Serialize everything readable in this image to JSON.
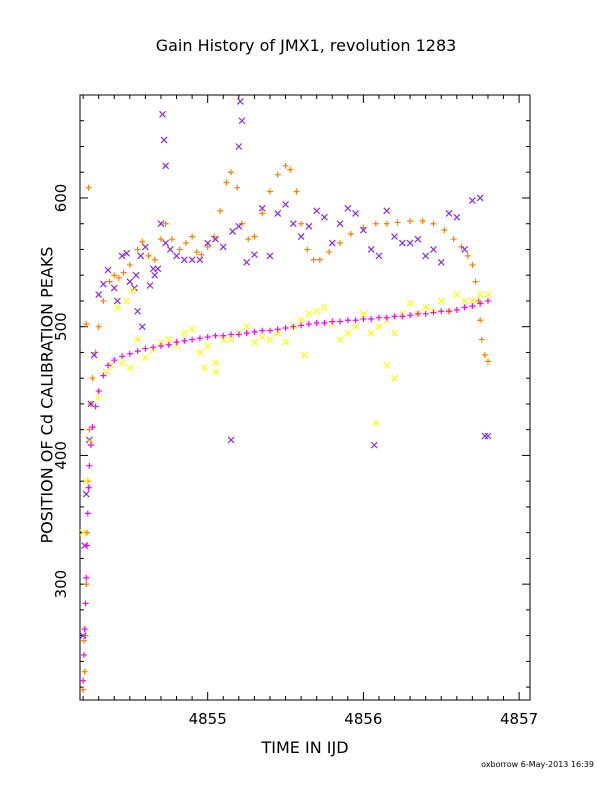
{
  "chart_data": {
    "type": "scatter",
    "title": "Gain History of JMX1, revolution 1283",
    "xlabel": "TIME IN IJD",
    "ylabel": "POSITION OF Cd CALIBRATION PEAKS",
    "xlim": [
      4854.18,
      4857.07
    ],
    "ylim": [
      210,
      680
    ],
    "x_ticks": [
      4855,
      4856,
      4857
    ],
    "y_ticks": [
      300,
      400,
      500,
      600
    ],
    "grid": false,
    "legend": "none",
    "series": [
      {
        "color": "#ff8000",
        "marker": "plus",
        "points": [
          [
            4854.2,
            218
          ],
          [
            4854.21,
            232
          ],
          [
            4854.215,
            260
          ],
          [
            4854.22,
            300
          ],
          [
            4854.225,
            340
          ],
          [
            4854.23,
            380
          ],
          [
            4854.24,
            420
          ],
          [
            4854.25,
            440
          ],
          [
            4854.26,
            460
          ],
          [
            4854.28,
            480
          ],
          [
            4854.3,
            500
          ],
          [
            4854.33,
            520
          ],
          [
            4854.37,
            535
          ],
          [
            4854.4,
            540
          ],
          [
            4854.43,
            538
          ],
          [
            4854.46,
            542
          ],
          [
            4854.5,
            548
          ],
          [
            4854.55,
            560
          ],
          [
            4854.58,
            566
          ],
          [
            4854.62,
            555
          ],
          [
            4854.66,
            552
          ],
          [
            4854.7,
            568
          ],
          [
            4854.73,
            580
          ],
          [
            4854.77,
            568
          ],
          [
            4854.82,
            560
          ],
          [
            4854.86,
            565
          ],
          [
            4854.9,
            570
          ],
          [
            4854.93,
            558
          ],
          [
            4854.96,
            556
          ],
          [
            4855.0,
            562
          ],
          [
            4855.04,
            570
          ],
          [
            4855.08,
            590
          ],
          [
            4855.12,
            612
          ],
          [
            4855.15,
            620
          ],
          [
            4855.19,
            608
          ],
          [
            4855.22,
            580
          ],
          [
            4855.26,
            568
          ],
          [
            4855.3,
            570
          ],
          [
            4855.35,
            588
          ],
          [
            4855.4,
            605
          ],
          [
            4855.45,
            618
          ],
          [
            4855.5,
            625
          ],
          [
            4855.53,
            622
          ],
          [
            4855.57,
            605
          ],
          [
            4855.6,
            580
          ],
          [
            4855.64,
            560
          ],
          [
            4855.68,
            552
          ],
          [
            4855.72,
            552
          ],
          [
            4855.78,
            558
          ],
          [
            4855.85,
            565
          ],
          [
            4855.92,
            572
          ],
          [
            4856.0,
            577
          ],
          [
            4856.08,
            580
          ],
          [
            4856.15,
            580
          ],
          [
            4856.22,
            581
          ],
          [
            4856.3,
            582
          ],
          [
            4856.38,
            582
          ],
          [
            4856.45,
            580
          ],
          [
            4856.52,
            575
          ],
          [
            4856.58,
            568
          ],
          [
            4856.63,
            562
          ],
          [
            4856.67,
            555
          ],
          [
            4856.7,
            548
          ],
          [
            4856.72,
            535
          ],
          [
            4856.74,
            520
          ],
          [
            4856.75,
            505
          ],
          [
            4856.76,
            490
          ],
          [
            4856.78,
            478
          ],
          [
            4856.8,
            473
          ],
          [
            4854.22,
            502
          ],
          [
            4854.235,
            608
          ],
          [
            4854.205,
            256
          ]
        ]
      },
      {
        "color": "#8a2be2",
        "marker": "cross",
        "points": [
          [
            4854.2,
            260
          ],
          [
            4854.21,
            330
          ],
          [
            4854.22,
            370
          ],
          [
            4854.24,
            412
          ],
          [
            4854.25,
            440
          ],
          [
            4854.27,
            478
          ],
          [
            4854.3,
            525
          ],
          [
            4854.33,
            533
          ],
          [
            4854.36,
            544
          ],
          [
            4854.4,
            530
          ],
          [
            4854.42,
            520
          ],
          [
            4854.45,
            555
          ],
          [
            4854.48,
            557
          ],
          [
            4854.5,
            535
          ],
          [
            4854.54,
            540
          ],
          [
            4854.57,
            555
          ],
          [
            4854.6,
            562
          ],
          [
            4854.63,
            532
          ],
          [
            4854.66,
            540
          ],
          [
            4854.7,
            580
          ],
          [
            4854.73,
            565
          ],
          [
            4854.76,
            560
          ],
          [
            4854.8,
            555
          ],
          [
            4854.85,
            552
          ],
          [
            4854.9,
            552
          ],
          [
            4854.95,
            552
          ],
          [
            4855.0,
            565
          ],
          [
            4855.05,
            568
          ],
          [
            4855.1,
            562
          ],
          [
            4855.16,
            574
          ],
          [
            4855.2,
            578
          ],
          [
            4855.25,
            550
          ],
          [
            4855.3,
            556
          ],
          [
            4855.35,
            592
          ],
          [
            4855.4,
            555
          ],
          [
            4855.45,
            588
          ],
          [
            4855.5,
            595
          ],
          [
            4855.55,
            580
          ],
          [
            4855.6,
            570
          ],
          [
            4855.65,
            578
          ],
          [
            4855.7,
            590
          ],
          [
            4855.75,
            585
          ],
          [
            4855.8,
            565
          ],
          [
            4855.85,
            580
          ],
          [
            4855.9,
            592
          ],
          [
            4855.95,
            588
          ],
          [
            4856.0,
            575
          ],
          [
            4856.05,
            560
          ],
          [
            4856.1,
            555
          ],
          [
            4856.15,
            590
          ],
          [
            4856.2,
            570
          ],
          [
            4856.25,
            565
          ],
          [
            4856.3,
            565
          ],
          [
            4856.35,
            568
          ],
          [
            4856.4,
            555
          ],
          [
            4856.45,
            560
          ],
          [
            4856.5,
            550
          ],
          [
            4856.55,
            588
          ],
          [
            4856.6,
            585
          ],
          [
            4856.65,
            560
          ],
          [
            4856.7,
            598
          ],
          [
            4856.75,
            600
          ],
          [
            4856.78,
            415
          ],
          [
            4856.8,
            415
          ],
          [
            4855.15,
            412
          ],
          [
            4856.07,
            408
          ],
          [
            4854.71,
            665
          ],
          [
            4854.72,
            645
          ],
          [
            4854.73,
            625
          ],
          [
            4855.21,
            675
          ],
          [
            4855.22,
            660
          ],
          [
            4855.2,
            640
          ],
          [
            4854.53,
            530
          ],
          [
            4854.55,
            512
          ],
          [
            4854.58,
            500
          ],
          [
            4854.65,
            545
          ],
          [
            4854.68,
            545
          ]
        ]
      },
      {
        "color": "#ffff00",
        "marker": "cross",
        "points": [
          [
            4854.2,
            340
          ],
          [
            4854.22,
            380
          ],
          [
            4854.25,
            410
          ],
          [
            4854.3,
            445
          ],
          [
            4854.35,
            465
          ],
          [
            4854.38,
            470
          ],
          [
            4854.45,
            472
          ],
          [
            4854.5,
            468
          ],
          [
            4854.55,
            490
          ],
          [
            4854.6,
            476
          ],
          [
            4854.65,
            482
          ],
          [
            4854.7,
            488
          ],
          [
            4854.75,
            490
          ],
          [
            4854.8,
            485
          ],
          [
            4854.85,
            495
          ],
          [
            4854.9,
            498
          ],
          [
            4854.95,
            480
          ],
          [
            4855.0,
            485
          ],
          [
            4855.05,
            472
          ],
          [
            4855.1,
            490
          ],
          [
            4855.15,
            490
          ],
          [
            4855.2,
            495
          ],
          [
            4855.25,
            500
          ],
          [
            4855.3,
            488
          ],
          [
            4855.35,
            492
          ],
          [
            4855.4,
            490
          ],
          [
            4855.45,
            495
          ],
          [
            4855.5,
            488
          ],
          [
            4855.55,
            500
          ],
          [
            4855.6,
            505
          ],
          [
            4855.65,
            510
          ],
          [
            4855.7,
            512
          ],
          [
            4855.75,
            515
          ],
          [
            4855.8,
            502
          ],
          [
            4855.85,
            490
          ],
          [
            4855.9,
            495
          ],
          [
            4855.95,
            500
          ],
          [
            4856.0,
            510
          ],
          [
            4856.05,
            495
          ],
          [
            4856.1,
            500
          ],
          [
            4856.15,
            505
          ],
          [
            4856.2,
            495
          ],
          [
            4856.25,
            510
          ],
          [
            4856.3,
            518
          ],
          [
            4856.35,
            510
          ],
          [
            4856.4,
            515
          ],
          [
            4856.45,
            512
          ],
          [
            4856.5,
            520
          ],
          [
            4856.55,
            512
          ],
          [
            4856.6,
            525
          ],
          [
            4856.65,
            520
          ],
          [
            4856.7,
            520
          ],
          [
            4856.75,
            525
          ],
          [
            4856.8,
            525
          ],
          [
            4854.52,
            528
          ],
          [
            4854.48,
            520
          ],
          [
            4854.42,
            515
          ],
          [
            4855.62,
            478
          ],
          [
            4856.08,
            425
          ],
          [
            4856.15,
            470
          ],
          [
            4856.2,
            460
          ],
          [
            4855.05,
            465
          ],
          [
            4854.98,
            468
          ]
        ]
      },
      {
        "color": "#ff00ff",
        "marker": "plus",
        "points": [
          [
            4854.2,
            225
          ],
          [
            4854.205,
            245
          ],
          [
            4854.21,
            265
          ],
          [
            4854.215,
            285
          ],
          [
            4854.22,
            305
          ],
          [
            4854.225,
            330
          ],
          [
            4854.23,
            355
          ],
          [
            4854.235,
            375
          ],
          [
            4854.24,
            392
          ],
          [
            4854.25,
            408
          ],
          [
            4854.26,
            422
          ],
          [
            4854.28,
            438
          ],
          [
            4854.3,
            450
          ],
          [
            4854.33,
            462
          ],
          [
            4854.36,
            470
          ],
          [
            4854.4,
            474
          ],
          [
            4854.45,
            477
          ],
          [
            4854.5,
            479
          ],
          [
            4854.55,
            481
          ],
          [
            4854.6,
            483
          ],
          [
            4854.65,
            484
          ],
          [
            4854.7,
            485
          ],
          [
            4854.75,
            486
          ],
          [
            4854.8,
            488
          ],
          [
            4854.85,
            489
          ],
          [
            4854.9,
            490
          ],
          [
            4854.95,
            491
          ],
          [
            4855.0,
            492
          ],
          [
            4855.05,
            493
          ],
          [
            4855.1,
            493
          ],
          [
            4855.15,
            494
          ],
          [
            4855.2,
            494
          ],
          [
            4855.25,
            495
          ],
          [
            4855.3,
            496
          ],
          [
            4855.35,
            497
          ],
          [
            4855.4,
            497
          ],
          [
            4855.45,
            498
          ],
          [
            4855.5,
            499
          ],
          [
            4855.55,
            500
          ],
          [
            4855.6,
            501
          ],
          [
            4855.65,
            502
          ],
          [
            4855.7,
            503
          ],
          [
            4855.75,
            503
          ],
          [
            4855.8,
            504
          ],
          [
            4855.85,
            504
          ],
          [
            4855.9,
            505
          ],
          [
            4855.95,
            505
          ],
          [
            4856.0,
            506
          ],
          [
            4856.05,
            506
          ],
          [
            4856.1,
            507
          ],
          [
            4856.15,
            507
          ],
          [
            4856.2,
            508
          ],
          [
            4856.25,
            508
          ],
          [
            4856.3,
            509
          ],
          [
            4856.35,
            510
          ],
          [
            4856.4,
            510
          ],
          [
            4856.45,
            511
          ],
          [
            4856.5,
            512
          ],
          [
            4856.55,
            512
          ],
          [
            4856.6,
            513
          ],
          [
            4856.65,
            515
          ],
          [
            4856.7,
            516
          ],
          [
            4856.75,
            518
          ],
          [
            4856.8,
            520
          ]
        ]
      }
    ]
  },
  "footer": {
    "credit": "oxborrow  6-May-2013 16:39"
  }
}
